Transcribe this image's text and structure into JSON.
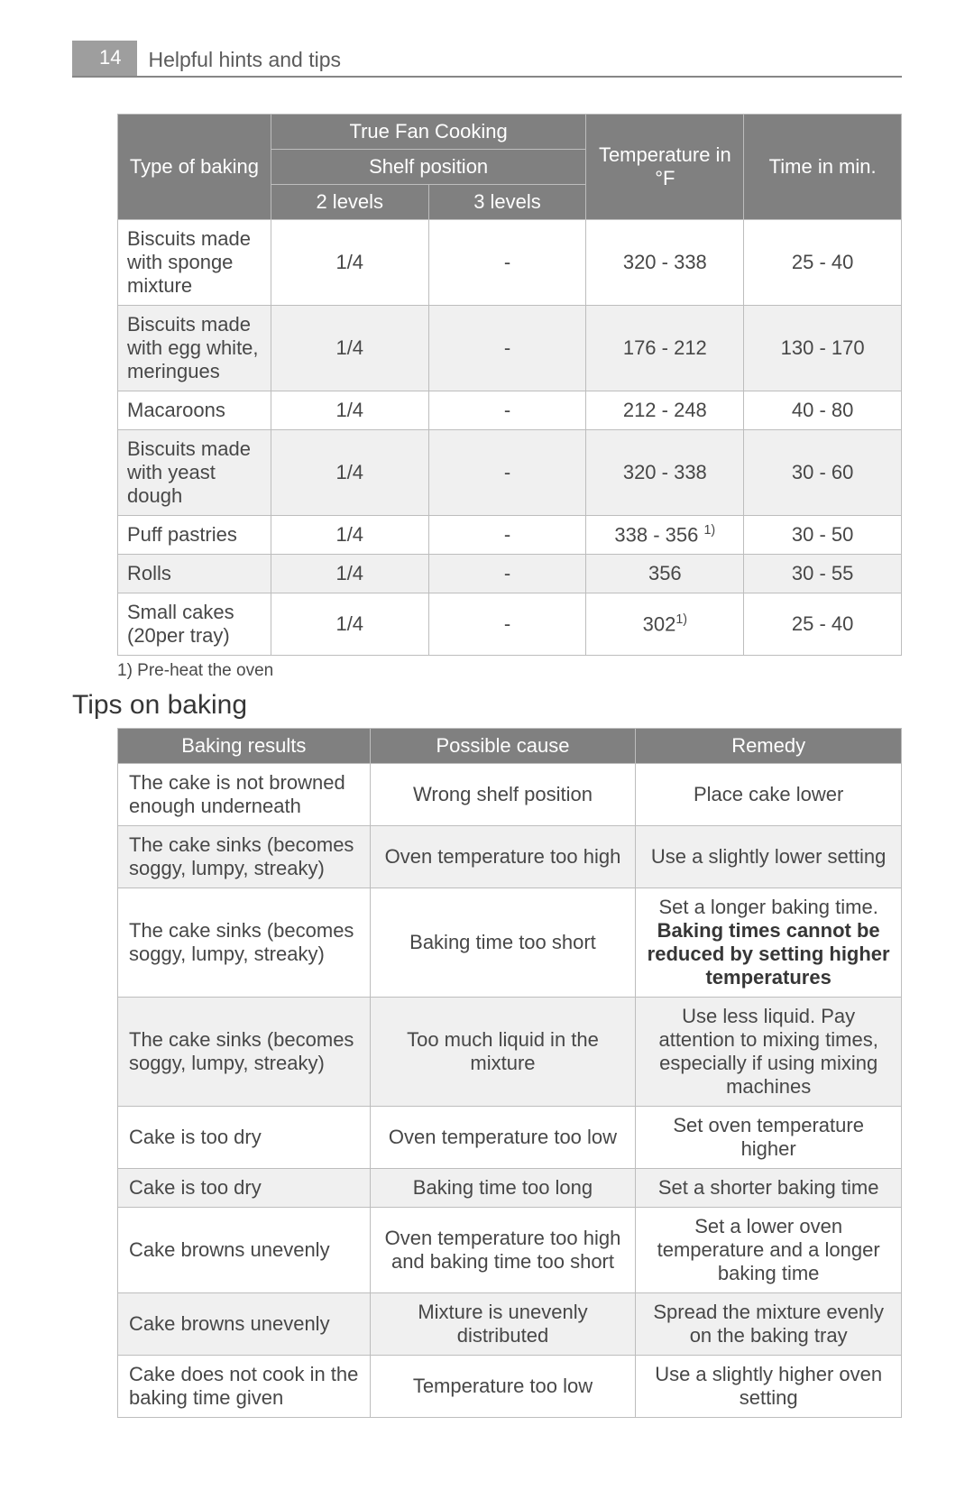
{
  "header": {
    "page_number": "14",
    "title": "Helpful hints and tips"
  },
  "table1": {
    "head": {
      "super_col": "True Fan Cooking",
      "col1": "Type of baking",
      "col2_group": "Shelf position",
      "col2a": "2 levels",
      "col2b": "3 levels",
      "col3": "Temperature in °F",
      "col4": "Time in min."
    },
    "rows": [
      {
        "type": "Biscuits made with sponge mixture",
        "lv2": "1/4",
        "lv3": "-",
        "temp": "320 - 338",
        "time": "25 - 40",
        "alt": false
      },
      {
        "type": "Biscuits made with egg white, meringues",
        "lv2": "1/4",
        "lv3": "-",
        "temp": "176 - 212",
        "time": "130 - 170",
        "alt": true
      },
      {
        "type": "Macaroons",
        "lv2": "1/4",
        "lv3": "-",
        "temp": "212 - 248",
        "time": "40 - 80",
        "alt": false
      },
      {
        "type": "Biscuits made with yeast dough",
        "lv2": "1/4",
        "lv3": "-",
        "temp": "320 - 338",
        "time": "30 - 60",
        "alt": true
      },
      {
        "type": "Puff pastries",
        "lv2": "1/4",
        "lv3": "-",
        "temp_html": "338 - 356 <sup>1)</sup>",
        "time": "30 - 50",
        "alt": false
      },
      {
        "type": "Rolls",
        "lv2": "1/4",
        "lv3": "-",
        "temp": "356",
        "time": "30 - 55",
        "alt": true
      },
      {
        "type": "Small cakes (20per tray)",
        "lv2": "1/4",
        "lv3": "-",
        "temp_html": "302<sup>1)</sup>",
        "time": "25 - 40",
        "alt": false
      }
    ],
    "footnote": "1) Pre-heat the oven"
  },
  "tips_heading": "Tips on baking",
  "table2": {
    "head": {
      "c1": "Baking results",
      "c2": "Possible cause",
      "c3": "Remedy"
    },
    "rows": [
      {
        "r": "The cake is not browned enough underneath",
        "c": "Wrong shelf position",
        "m": "Place cake lower",
        "alt": false
      },
      {
        "r": "The cake sinks (becomes soggy, lumpy, streaky)",
        "c": "Oven temperature too high",
        "m": "Use a slightly lower setting",
        "alt": true
      },
      {
        "r": "The cake sinks (becomes soggy, lumpy, streaky)",
        "c": "Baking time too short",
        "m_html": "Set a longer baking time. <span class=\"bold\">Baking times cannot be reduced by setting higher temperatures</span>",
        "alt": false
      },
      {
        "r": "The cake sinks (becomes soggy, lumpy, streaky)",
        "c": "Too much liquid in the mixture",
        "m": "Use less liquid. Pay attention to mixing times, especially if using mixing machines",
        "alt": true
      },
      {
        "r": "Cake is too dry",
        "c": "Oven temperature too low",
        "m": "Set oven temperature higher",
        "alt": false
      },
      {
        "r": "Cake is too dry",
        "c": "Baking time too long",
        "m": "Set a shorter baking time",
        "alt": true
      },
      {
        "r": "Cake browns unevenly",
        "c": "Oven temperature too high and baking time too short",
        "m": "Set a lower oven temperature and a longer baking time",
        "alt": false
      },
      {
        "r": "Cake browns unevenly",
        "c": "Mixture is unevenly distributed",
        "m": "Spread the mixture evenly on the baking tray",
        "alt": true
      },
      {
        "r": "Cake does not cook in the baking time given",
        "c": "Temperature too low",
        "m": "Use a slightly higher oven setting",
        "alt": false
      }
    ]
  },
  "colors": {
    "header_bg": "#9e9e9e",
    "th_bg": "#808080",
    "border": "#bdbdbd",
    "alt_row": "#f0f0f0",
    "text": "#474747"
  }
}
